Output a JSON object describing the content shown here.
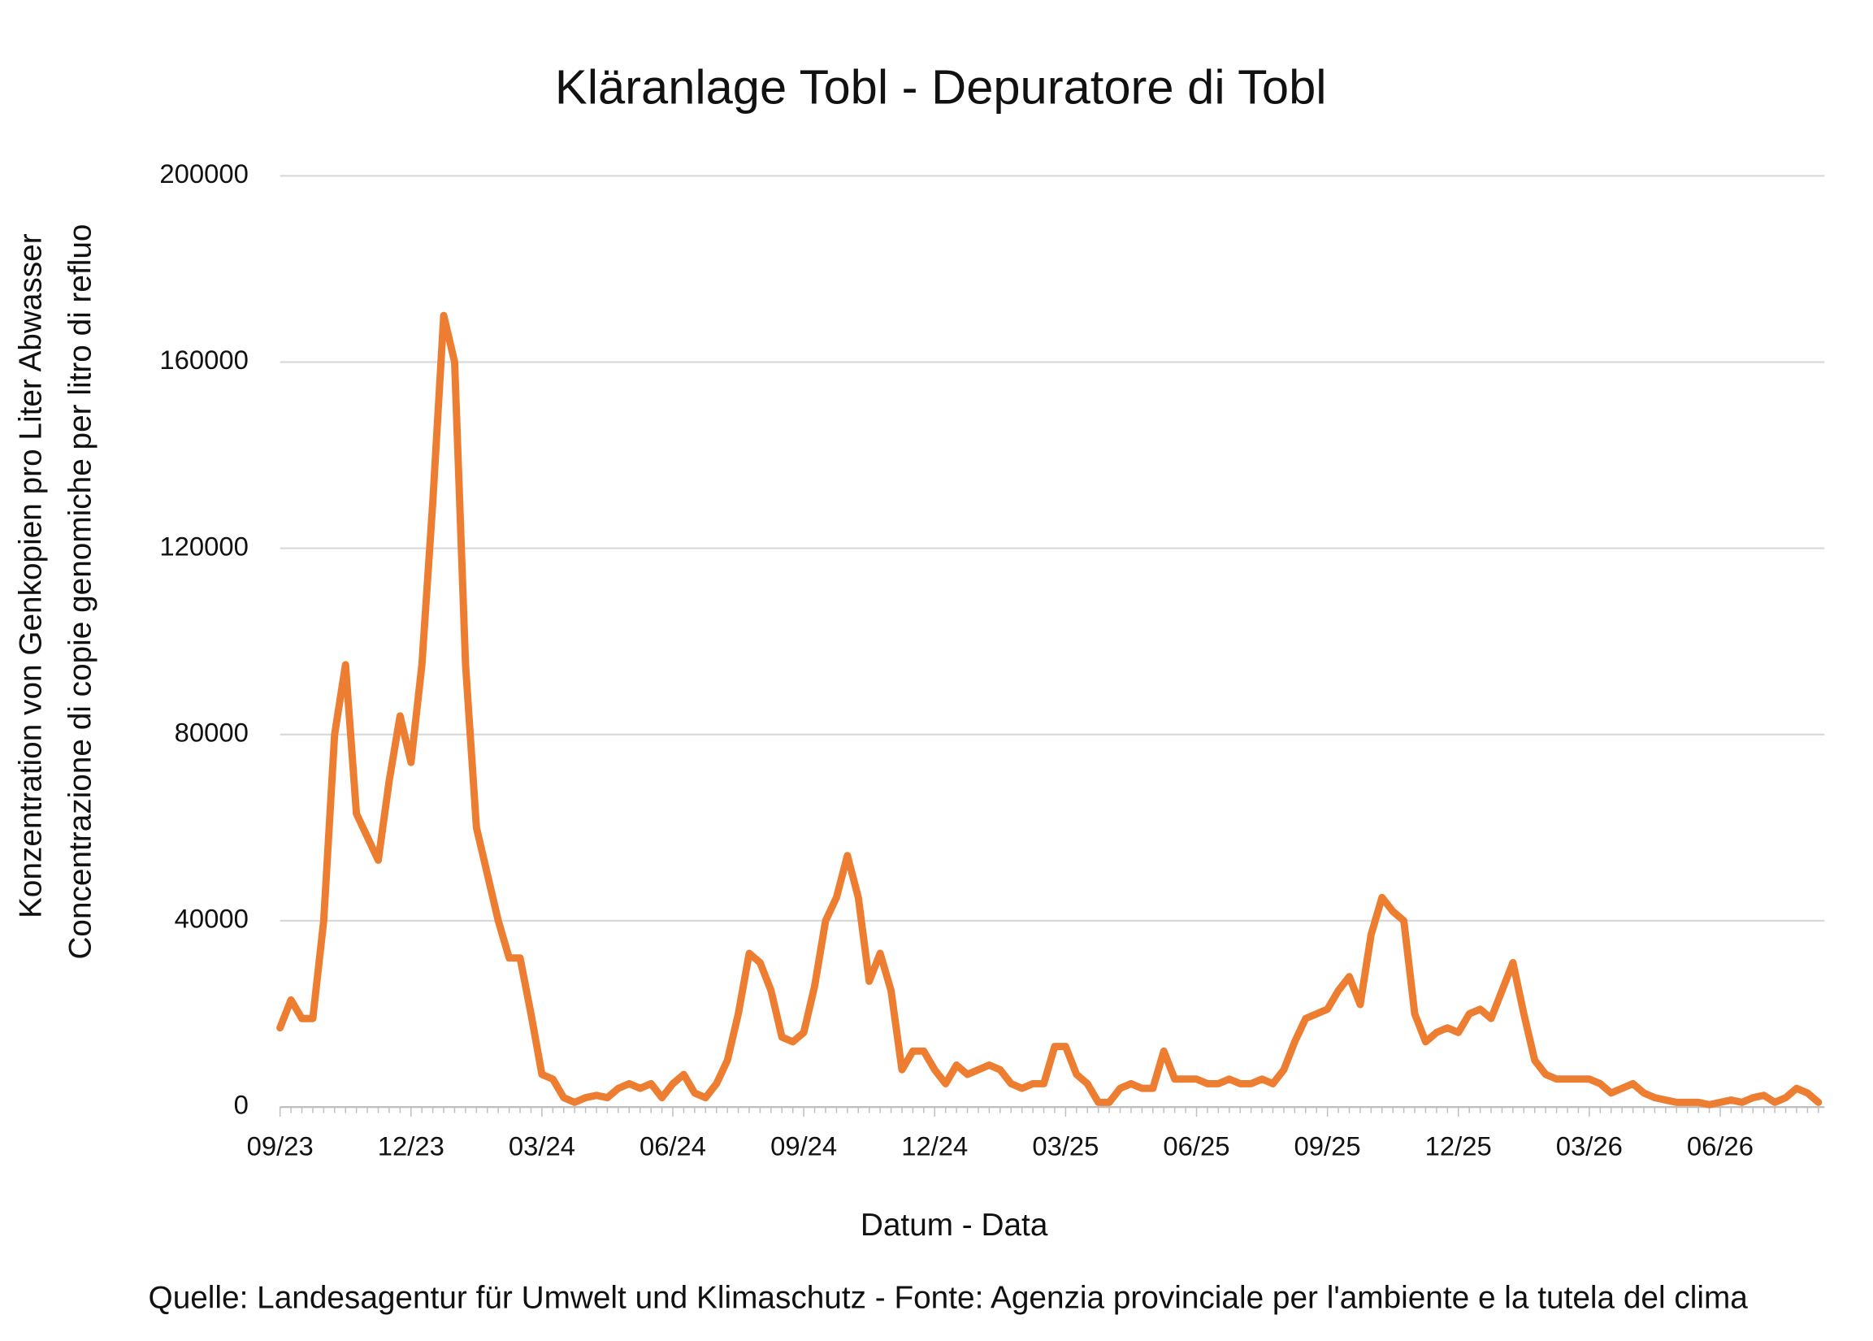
{
  "chart_data": {
    "type": "line",
    "title": "Kläranlage Tobl - Depuratore di Tobl",
    "ylabel": [
      "Konzentration von Genkopien pro Liter Abwasser",
      "Concentrazione di copie genomiche per litro di refluo"
    ],
    "xlabel": "Datum - Data",
    "source": "Quelle: Landesagentur für Umwelt und Klimaschutz - Fonte: Agenzia provinciale per l'ambiente e la tutela del clima",
    "ylim": [
      0,
      200000
    ],
    "yticks": [
      0,
      40000,
      80000,
      120000,
      160000,
      200000
    ],
    "grid": true,
    "categories": [
      "09/23",
      null,
      null,
      null,
      null,
      null,
      null,
      null,
      null,
      null,
      null,
      null,
      "12/23",
      null,
      null,
      null,
      null,
      null,
      null,
      null,
      null,
      null,
      null,
      null,
      "03/24",
      null,
      null,
      null,
      null,
      null,
      null,
      null,
      null,
      null,
      null,
      null,
      "06/24",
      null,
      null,
      null,
      null,
      null,
      null,
      null,
      null,
      null,
      null,
      null,
      "09/24",
      null,
      null,
      null,
      null,
      null,
      null,
      null,
      null,
      null,
      null,
      null,
      "12/24",
      null,
      null,
      null,
      null,
      null,
      null,
      null,
      null,
      null,
      null,
      null,
      "03/25",
      null,
      null,
      null,
      null,
      null,
      null,
      null,
      null,
      null,
      null,
      null,
      "06/25",
      null,
      null,
      null,
      null,
      null,
      null,
      null,
      null,
      null,
      null,
      null,
      "09/25",
      null,
      null,
      null,
      null,
      null,
      null,
      null,
      null,
      null,
      null,
      null,
      "12/25",
      null,
      null,
      null,
      null,
      null,
      null,
      null,
      null,
      null,
      null,
      null,
      "03/26",
      null,
      null,
      null,
      null,
      null,
      null,
      null,
      null,
      null,
      null,
      null,
      "06/26",
      null,
      null,
      null,
      null,
      null,
      null,
      null,
      null,
      null
    ],
    "series": [
      {
        "name": "Tobl",
        "color": "#ed7d31",
        "values": [
          17000,
          23000,
          19000,
          19000,
          40000,
          80000,
          95000,
          63000,
          58000,
          53000,
          70000,
          84000,
          74000,
          95000,
          130000,
          170000,
          160000,
          95000,
          60000,
          50000,
          40000,
          32000,
          32000,
          20000,
          7000,
          6000,
          2000,
          1000,
          2000,
          2500,
          2000,
          4000,
          5000,
          4000,
          5000,
          2000,
          5000,
          7000,
          3000,
          2000,
          5000,
          10000,
          20000,
          33000,
          31000,
          25000,
          15000,
          14000,
          16000,
          26000,
          40000,
          45000,
          54000,
          45000,
          27000,
          33000,
          25000,
          8000,
          12000,
          12000,
          8000,
          5000,
          9000,
          7000,
          8000,
          9000,
          8000,
          5000,
          4000,
          5000,
          5000,
          13000,
          13000,
          7000,
          5000,
          1000,
          1000,
          4000,
          5000,
          4000,
          4000,
          12000,
          6000,
          6000,
          6000,
          5000,
          5000,
          6000,
          5000,
          5000,
          6000,
          5000,
          8000,
          14000,
          19000,
          20000,
          21000,
          25000,
          28000,
          22000,
          37000,
          45000,
          42000,
          40000,
          20000,
          14000,
          16000,
          17000,
          16000,
          20000,
          21000,
          19000,
          25000,
          31000,
          20000,
          10000,
          7000,
          6000,
          6000,
          6000,
          6000,
          5000,
          3000,
          4000,
          5000,
          3000,
          2000,
          1500,
          1000,
          1000,
          1000,
          500,
          1000,
          1500,
          1000,
          2000,
          2500,
          1000,
          2000,
          4000,
          3000,
          1000
        ]
      }
    ]
  }
}
